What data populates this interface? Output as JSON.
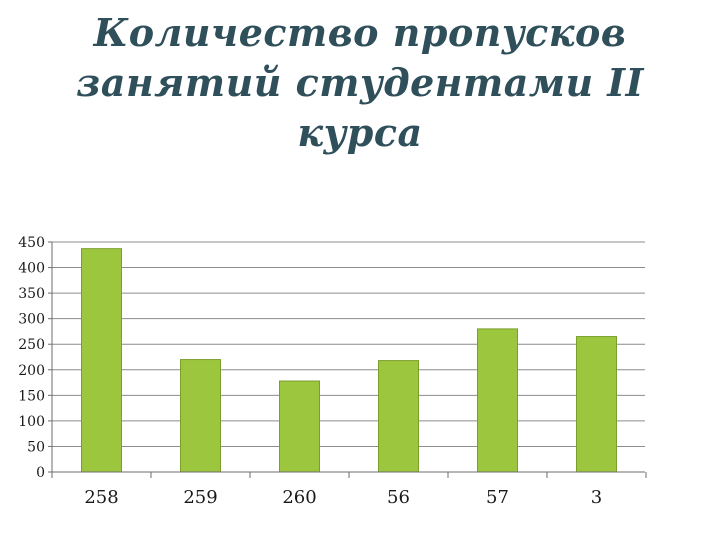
{
  "title_lines": [
    "Количество пропусков",
    "занятий студентами II",
    "курса"
  ],
  "colors": {
    "bar": "#9dc63f",
    "bar_edge": "#7c9f2c",
    "grid": "#8c8c8c",
    "axis": "#6e6e6e",
    "title": "#2f4f5a",
    "tick_text": "#1a1a1a"
  },
  "chart_data": {
    "type": "bar",
    "title": "Количество пропусков занятий студентами II курса",
    "categories": [
      "258",
      "259",
      "260",
      "56",
      "57",
      "3"
    ],
    "values": [
      437,
      220,
      178,
      218,
      280,
      265
    ],
    "ylim": [
      0,
      450
    ],
    "yticks": [
      0,
      50,
      100,
      150,
      200,
      250,
      300,
      350,
      400,
      450
    ],
    "grid": true,
    "legend": "none",
    "xlabel": "",
    "ylabel": ""
  }
}
